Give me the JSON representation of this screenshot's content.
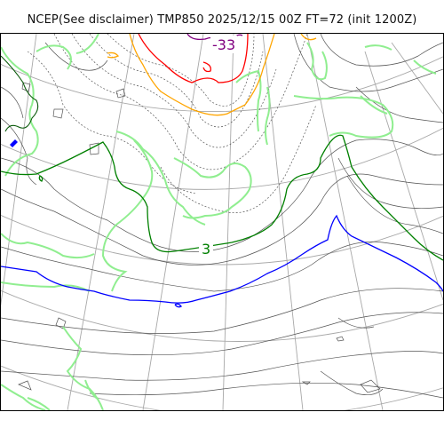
{
  "title": "NCEP(See disclaimer) TMP850 2025/12/15 00Z FT=72 (init 1200Z)",
  "contour_labels": [
    {
      "text": "-33",
      "color": "#800080"
    },
    {
      "text": "3",
      "color": "#008000"
    }
  ],
  "colors": {
    "isotherm_minus33": "#800080",
    "isotherm_red": "#ff0000",
    "isotherm_orange": "#ffa500",
    "isotherm_green": "#008000",
    "isotherm_blue": "#0000ff",
    "coastline": "#90ee90",
    "graticule": "#a0a0a0",
    "contour_gray": "#555555"
  }
}
